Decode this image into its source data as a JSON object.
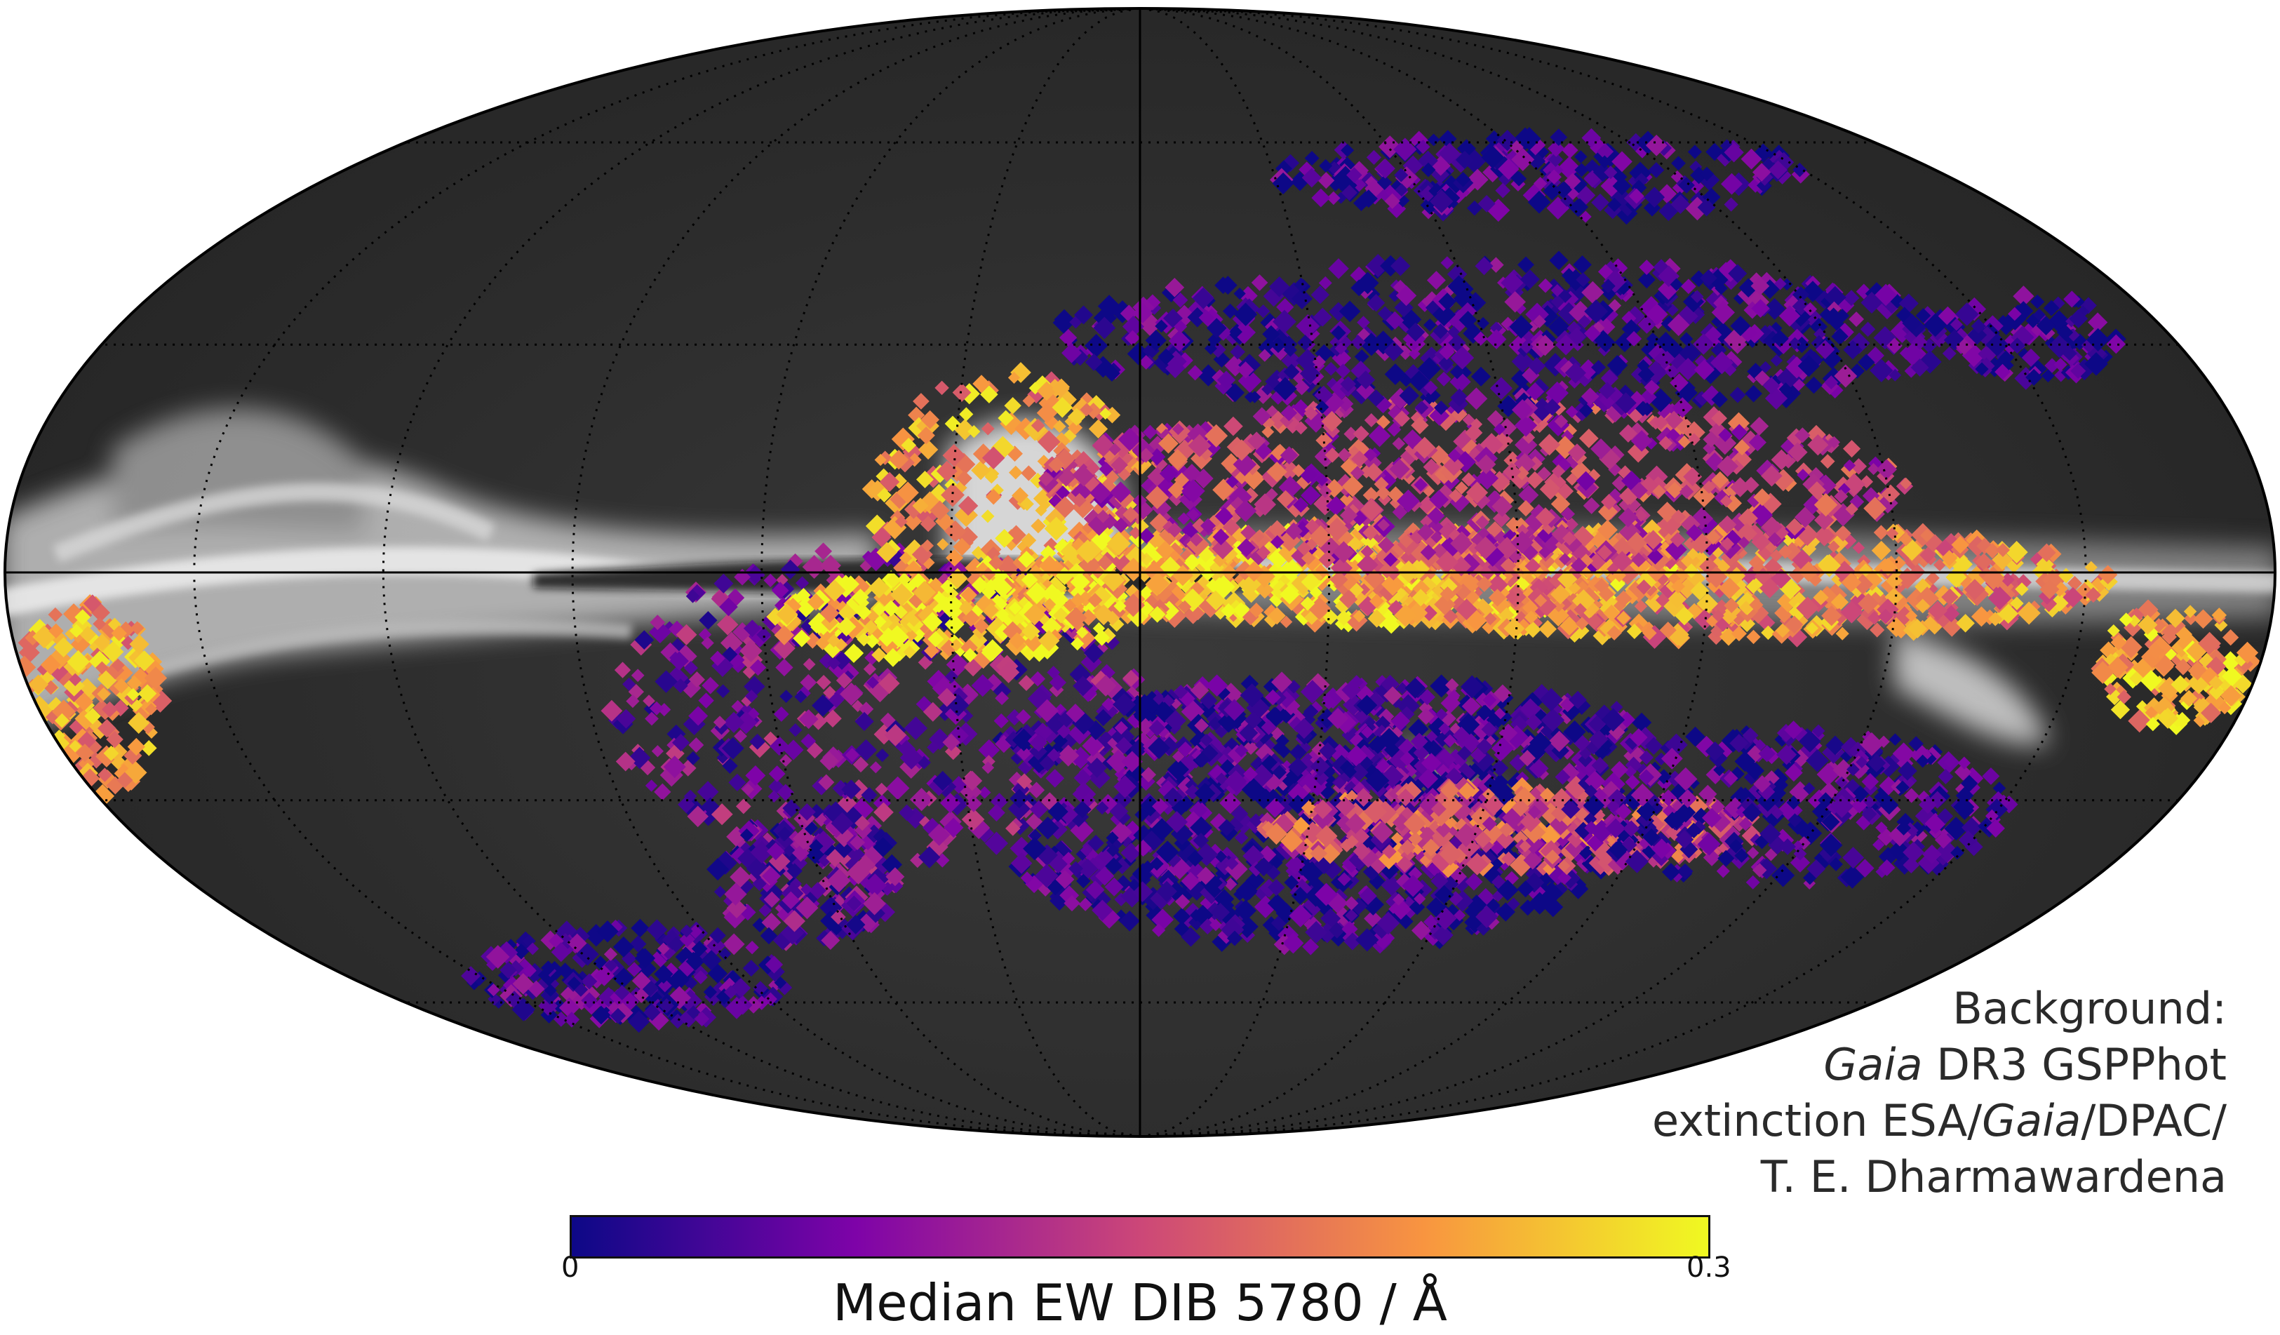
{
  "map": {
    "projection": "mollweide",
    "coordinate_system": "galactic",
    "graticule": "dotted",
    "background_shading": "grayscale",
    "overlay_colormap": "plasma",
    "colors": {
      "sky_dark": "#2b2b2b",
      "outline": "#000000",
      "cmap_low": "#0d0887",
      "cmap_mid1": "#7e03a8",
      "cmap_mid2": "#cc4778",
      "cmap_mid3": "#f89540",
      "cmap_high": "#f0f921"
    }
  },
  "credit": {
    "line1": "Background:",
    "line2_italic": "Gaia",
    "line2_rest": " DR3 GSPPhot",
    "line3_pre": "extinction ESA/",
    "line3_italic": "Gaia",
    "line3_post": "/DPAC/",
    "line4": "T. E. Dharmawardena"
  },
  "colorbar": {
    "label": "Median EW DIB 5780 / Å",
    "min_label": "0",
    "max_label": "0.3",
    "min": 0,
    "max": 0.3
  }
}
